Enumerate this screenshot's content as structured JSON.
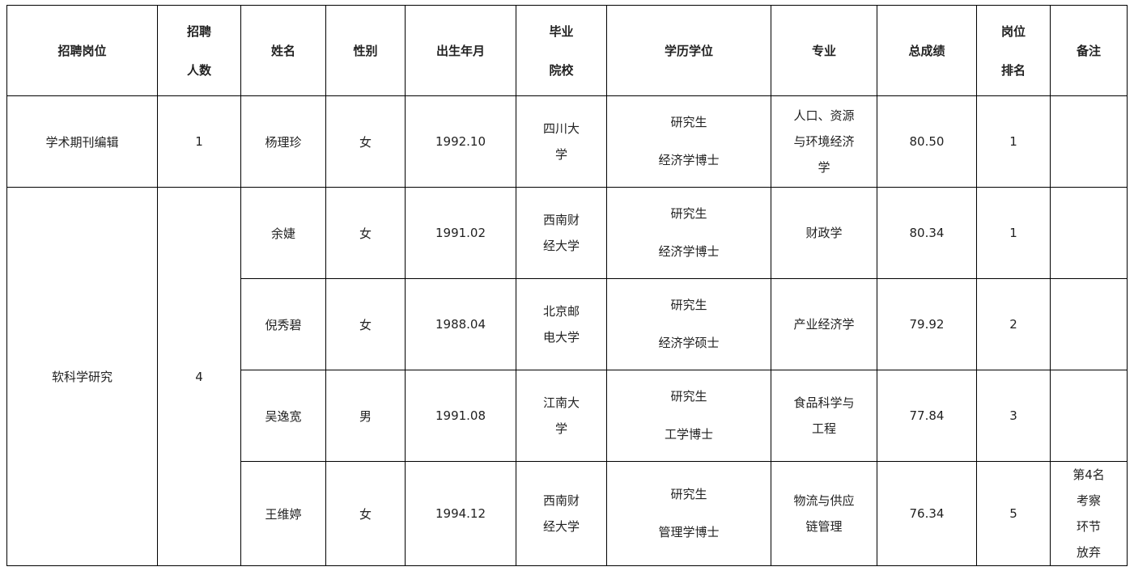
{
  "headers": [
    [
      "招聘岗位"
    ],
    [
      "招聘",
      "人数"
    ],
    [
      "姓名"
    ],
    [
      "性别"
    ],
    [
      "出生年月"
    ],
    [
      "毕业",
      "院校"
    ],
    [
      "学历学位"
    ],
    [
      "专业"
    ],
    [
      "总成绩"
    ],
    [
      "岗位",
      "排名"
    ],
    [
      "备注"
    ]
  ],
  "groups": [
    {
      "position": "学术期刊编辑",
      "count": "1",
      "rows": [
        {
          "name": "杨理珍",
          "gender": "女",
          "birth": "1992.10",
          "school": [
            "四川大",
            "学"
          ],
          "degree": [
            "研究生",
            "经济学博士"
          ],
          "major": [
            "人口、资源",
            "与环境经济",
            "学"
          ],
          "score": "80.50",
          "rank": "1",
          "note": []
        }
      ]
    },
    {
      "position": "软科学研究",
      "count": "4",
      "rows": [
        {
          "name": "余婕",
          "gender": "女",
          "birth": "1991.02",
          "school": [
            "西南财",
            "经大学"
          ],
          "degree": [
            "研究生",
            "经济学博士"
          ],
          "major": [
            "财政学"
          ],
          "score": "80.34",
          "rank": "1",
          "note": []
        },
        {
          "name": "倪秀碧",
          "gender": "女",
          "birth": "1988.04",
          "school": [
            "北京邮",
            "电大学"
          ],
          "degree": [
            "研究生",
            "经济学硕士"
          ],
          "major": [
            "产业经济学"
          ],
          "score": "79.92",
          "rank": "2",
          "note": []
        },
        {
          "name": "吴逸宽",
          "gender": "男",
          "birth": "1991.08",
          "school": [
            "江南大",
            "学"
          ],
          "degree": [
            "研究生",
            "工学博士"
          ],
          "major": [
            "食品科学与",
            "工程"
          ],
          "score": "77.84",
          "rank": "3",
          "note": []
        },
        {
          "name": "王维婷",
          "gender": "女",
          "birth": "1994.12",
          "school": [
            "西南财",
            "经大学"
          ],
          "degree": [
            "研究生",
            "管理学博士"
          ],
          "major": [
            "物流与供应",
            "链管理"
          ],
          "score": "76.34",
          "rank": "5",
          "note": [
            "第4名",
            "考察",
            "环节",
            "放弃"
          ]
        }
      ]
    }
  ]
}
